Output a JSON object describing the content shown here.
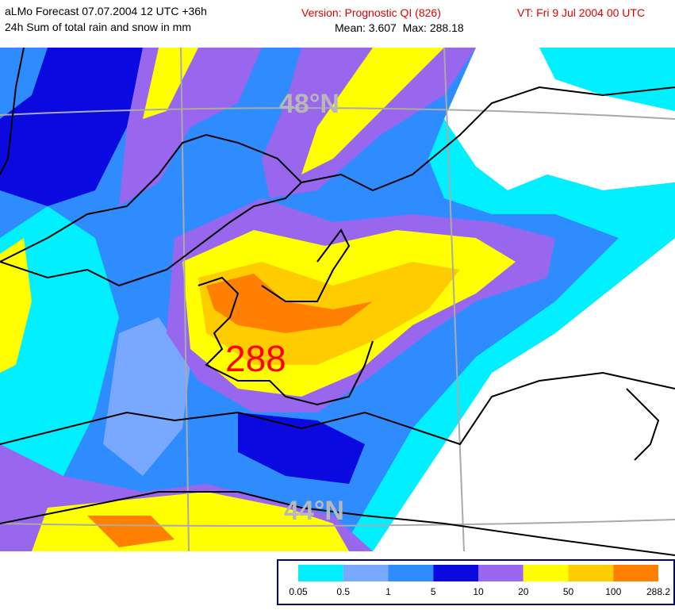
{
  "header": {
    "title": "aLMo Forecast 07.07.2004 12 UTC +36h",
    "subtitle": "24h Sum of total rain and snow in mm",
    "version": "Version: Prognostic QI (826)",
    "stats": "Mean: 3.607  Max: 288.18",
    "valid_time": "VT: Fri 9 Jul 2004 00 UTC"
  },
  "map": {
    "latitude_labels": [
      "48°N",
      "44°N"
    ],
    "max_label": "288"
  },
  "legend": {
    "colors": [
      "#00f0ff",
      "#78a8ff",
      "#2f8cff",
      "#0a0ae0",
      "#9966ee",
      "#ffff00",
      "#ffcc00",
      "#ff8000"
    ],
    "labels": [
      "0.05",
      "0.5",
      "1",
      "5",
      "10",
      "20",
      "50",
      "100",
      "288.2"
    ]
  }
}
